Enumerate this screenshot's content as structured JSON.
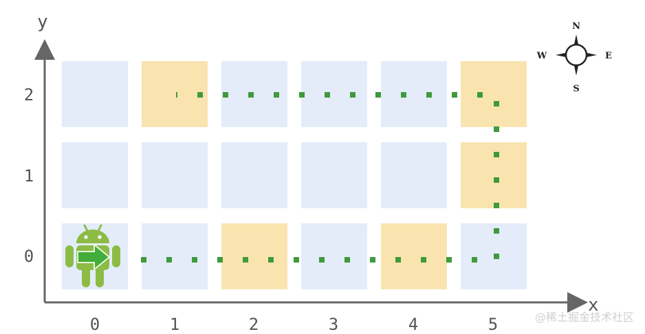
{
  "axes": {
    "x_label": "x",
    "y_label": "y"
  },
  "x_ticks": [
    "0",
    "1",
    "2",
    "3",
    "4",
    "5"
  ],
  "y_ticks": [
    "0",
    "1",
    "2"
  ],
  "compass": {
    "n": "N",
    "s": "S",
    "e": "E",
    "w": "W"
  },
  "colors": {
    "cell_default": "#e4ecfa",
    "cell_highlight": "#f9e4b0",
    "path": "#3f9a3b",
    "axis": "#666666",
    "robot": "#8cbc45",
    "robot_arrow": "#42ad3b"
  },
  "grid": {
    "cols": 6,
    "rows": 3,
    "highlighted_cells": [
      [
        1,
        2
      ],
      [
        5,
        2
      ],
      [
        5,
        1
      ],
      [
        2,
        0
      ],
      [
        4,
        0
      ]
    ]
  },
  "robot": {
    "icon": "android-robot-icon",
    "cell": [
      0,
      0
    ],
    "facing": "E"
  },
  "path_points": [
    [
      0,
      0
    ],
    [
      5,
      0
    ],
    [
      5,
      2
    ],
    [
      1,
      2
    ]
  ],
  "watermark": "@稀土掘金技术社区"
}
